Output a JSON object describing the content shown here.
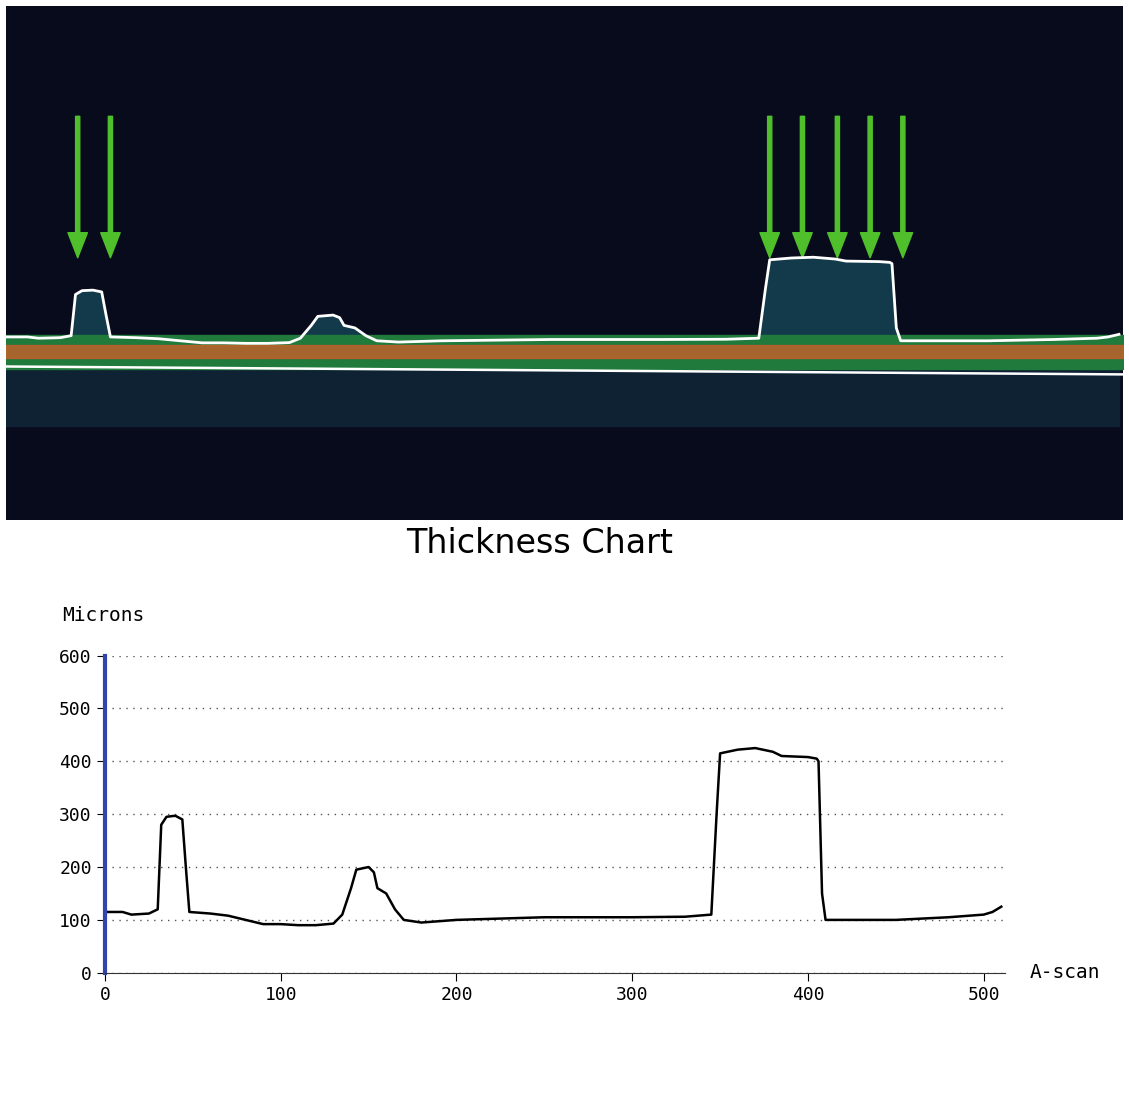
{
  "chart_data": {
    "type": "line",
    "title": "Thickness Chart",
    "x_label": "A-scan",
    "y_label": "Microns",
    "x": [
      0,
      10,
      15,
      25,
      30,
      32,
      35,
      40,
      44,
      46,
      48,
      60,
      70,
      80,
      90,
      100,
      110,
      120,
      130,
      135,
      140,
      143,
      150,
      153,
      155,
      160,
      165,
      170,
      180,
      200,
      220,
      250,
      280,
      300,
      330,
      345,
      348,
      350,
      360,
      370,
      380,
      385,
      400,
      405,
      406,
      408,
      410,
      450,
      480,
      500,
      505,
      510
    ],
    "values": [
      115,
      115,
      110,
      112,
      120,
      280,
      295,
      297,
      290,
      200,
      115,
      112,
      108,
      100,
      92,
      92,
      90,
      90,
      93,
      110,
      160,
      195,
      200,
      190,
      160,
      150,
      120,
      100,
      95,
      100,
      102,
      105,
      105,
      105,
      106,
      110,
      300,
      415,
      422,
      425,
      418,
      410,
      408,
      405,
      400,
      150,
      100,
      100,
      105,
      110,
      115,
      125
    ],
    "color": "#000000",
    "xlim": [
      0,
      512
    ],
    "xticks": [
      0,
      100,
      200,
      300,
      400,
      500
    ],
    "ylim": [
      0,
      600
    ],
    "yticks": [
      0,
      100,
      200,
      300,
      400,
      500,
      600
    ],
    "grid": true
  }
}
